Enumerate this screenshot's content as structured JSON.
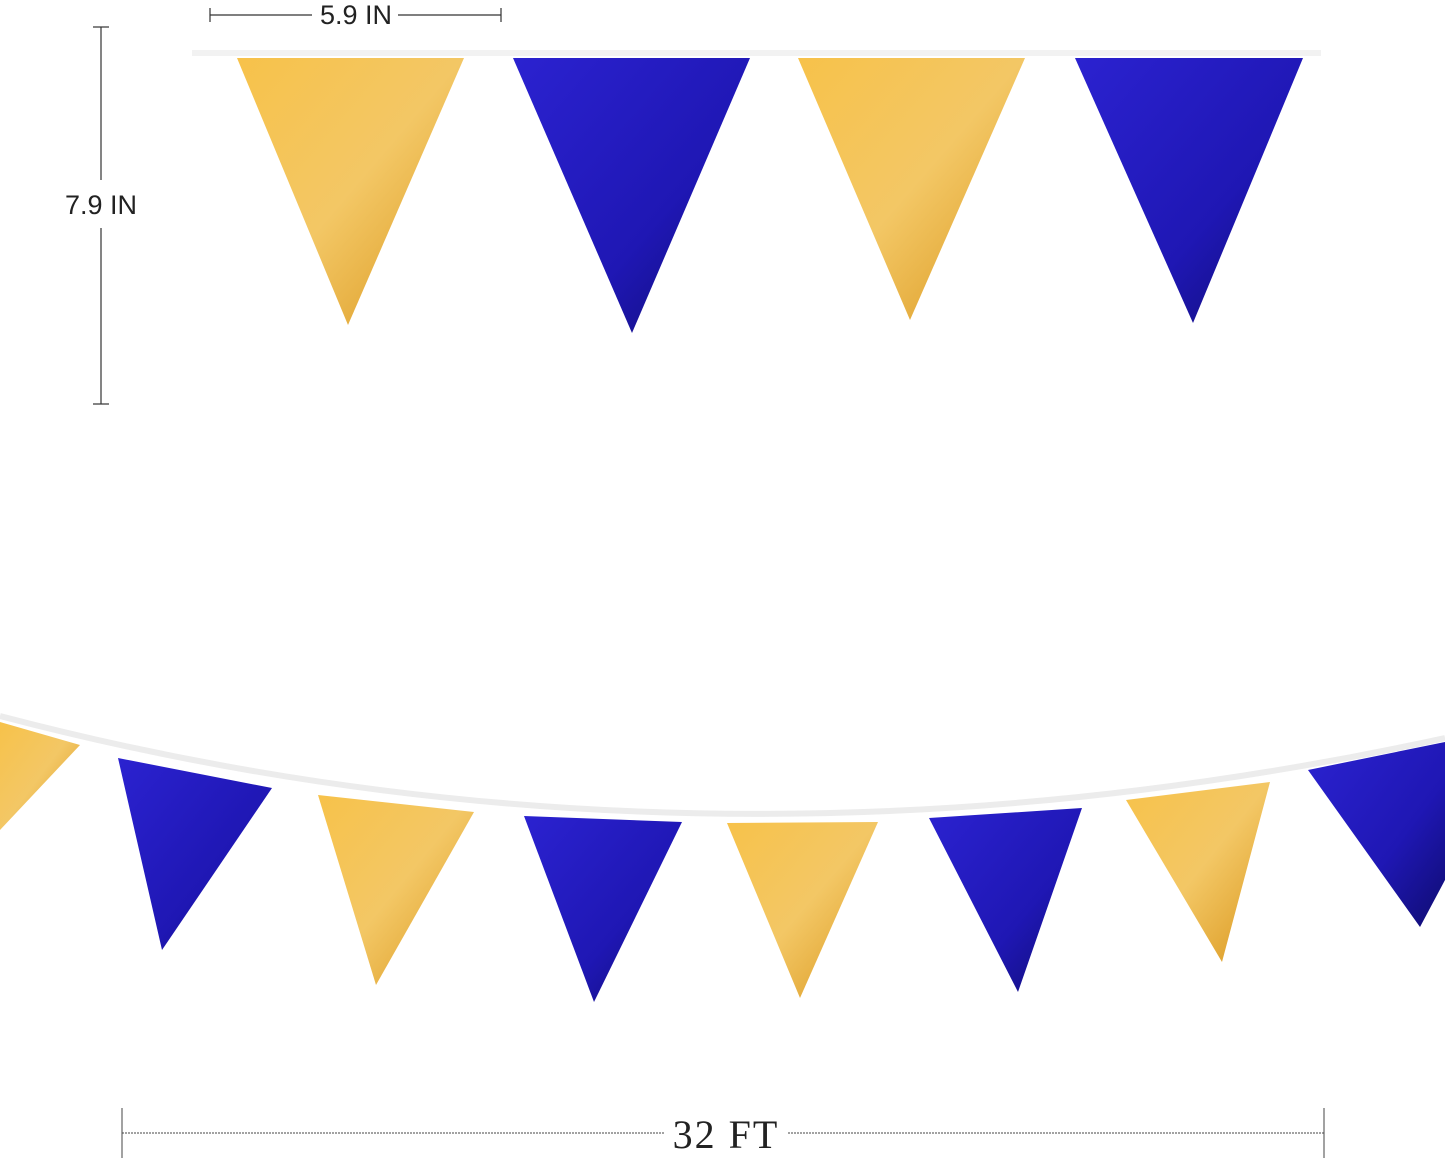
{
  "dimensions": {
    "flag_width": "5.9 IN",
    "flag_height": "7.9 IN",
    "total_length": "32 FT"
  },
  "colors": {
    "gold": "#f0b030",
    "gold_light": "#f7d27a",
    "blue": "#2a1fc4",
    "blue_dark": "#14108a",
    "string": "#f4f4f4"
  }
}
